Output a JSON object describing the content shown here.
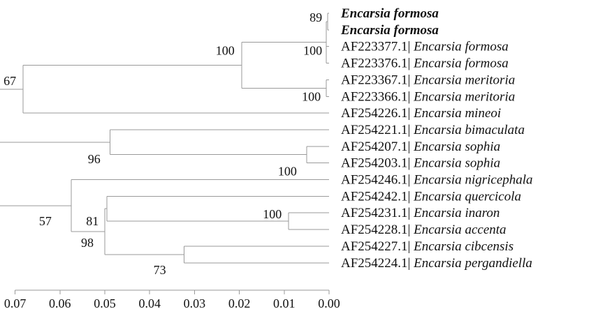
{
  "chart_data": {
    "type": "phylogenetic_tree",
    "scale_axis": {
      "ticks": [
        0.07,
        0.06,
        0.05,
        0.04,
        0.03,
        0.02,
        0.01,
        0.0
      ],
      "tick_labels": [
        "0.07",
        "0.06",
        "0.05",
        "0.04",
        "0.03",
        "0.02",
        "0.01",
        "0.00"
      ]
    },
    "leaves": [
      {
        "accession": "",
        "sep": "",
        "species": "Encarsia formosa",
        "bold": true
      },
      {
        "accession": "",
        "sep": "",
        "species": "Encarsia formosa",
        "bold": true
      },
      {
        "accession": "AF223377.1",
        "sep": "| ",
        "species": "Encarsia formosa",
        "bold": false
      },
      {
        "accession": "AF223376.1",
        "sep": "| ",
        "species": "Encarsia formosa",
        "bold": false
      },
      {
        "accession": "AF223367.1",
        "sep": "| ",
        "species": "Encarsia meritoria",
        "bold": false
      },
      {
        "accession": "AF223366.1",
        "sep": "| ",
        "species": "Encarsia meritoria",
        "bold": false
      },
      {
        "accession": "AF254226.1",
        "sep": "| ",
        "species": "Encarsia mineoi",
        "bold": false
      },
      {
        "accession": "AF254221.1",
        "sep": "| ",
        "species": "Encarsia bimaculata",
        "bold": false
      },
      {
        "accession": "AF254207.1",
        "sep": "| ",
        "species": "Encarsia sophia",
        "bold": false
      },
      {
        "accession": "AF254203.1",
        "sep": "| ",
        "species": "Encarsia sophia",
        "bold": false
      },
      {
        "accession": "AF254246.1",
        "sep": "| ",
        "species": "Encarsia nigricephala",
        "bold": false
      },
      {
        "accession": "AF254242.1",
        "sep": "| ",
        "species": "Encarsia quercicola",
        "bold": false
      },
      {
        "accession": "AF254231.1",
        "sep": "| ",
        "species": "Encarsia inaron",
        "bold": false
      },
      {
        "accession": "AF254228.1",
        "sep": "| ",
        "species": "Encarsia accenta",
        "bold": false
      },
      {
        "accession": "AF254227.1",
        "sep": "| ",
        "species": "Encarsia cibcensis",
        "bold": false
      },
      {
        "accession": "AF254224.1",
        "sep": "| ",
        "species": "Encarsia pergandiella",
        "bold": false
      }
    ],
    "nodes": [
      {
        "id": "n_formosa_bold",
        "height": 0.0003,
        "children": [
          {
            "leaf": 0
          },
          {
            "leaf": 1
          }
        ],
        "support": "89"
      },
      {
        "id": "n_formosa",
        "height": 0.0006,
        "children": [
          {
            "node": "n_formosa_bold"
          },
          {
            "leaf": 2
          },
          {
            "leaf": 3
          }
        ],
        "support": "100"
      },
      {
        "id": "n_meritoria",
        "height": 0.0006,
        "children": [
          {
            "leaf": 4
          },
          {
            "leaf": 5
          }
        ],
        "support": "100"
      },
      {
        "id": "n_form_merit",
        "height": 0.0195,
        "children": [
          {
            "node": "n_formosa"
          },
          {
            "node": "n_meritoria"
          }
        ],
        "support": "100"
      },
      {
        "id": "n_top",
        "height": 0.0682,
        "children": [
          {
            "node": "n_form_merit"
          },
          {
            "leaf": 6
          }
        ],
        "support": "67"
      },
      {
        "id": "n_sophia",
        "height": 0.005,
        "children": [
          {
            "leaf": 8
          },
          {
            "leaf": 9
          }
        ],
        "support": "100"
      },
      {
        "id": "n_bimac",
        "height": 0.0488,
        "children": [
          {
            "leaf": 7
          },
          {
            "node": "n_sophia"
          }
        ],
        "support": "96"
      },
      {
        "id": "n_inar_acc",
        "height": 0.009,
        "children": [
          {
            "leaf": 12
          },
          {
            "leaf": 13
          }
        ],
        "support": "100"
      },
      {
        "id": "n_quer",
        "height": 0.0495,
        "children": [
          {
            "leaf": 11
          },
          {
            "node": "n_inar_acc"
          }
        ],
        "support": "81"
      },
      {
        "id": "n_cib_perg",
        "height": 0.0323,
        "children": [
          {
            "leaf": 14
          },
          {
            "leaf": 15
          }
        ],
        "support": "73"
      },
      {
        "id": "n_98",
        "height": 0.05,
        "children": [
          {
            "node": "n_quer"
          },
          {
            "node": "n_cib_perg"
          }
        ],
        "support": "98"
      },
      {
        "id": "n_57",
        "height": 0.0575,
        "children": [
          {
            "leaf": 10
          },
          {
            "node": "n_98"
          }
        ],
        "support": "57"
      },
      {
        "id": "root",
        "height": 0.0758,
        "children": [
          {
            "node": "n_top"
          },
          {
            "node": "n_bimac"
          },
          {
            "node": "n_57"
          }
        ],
        "support": ""
      }
    ]
  }
}
